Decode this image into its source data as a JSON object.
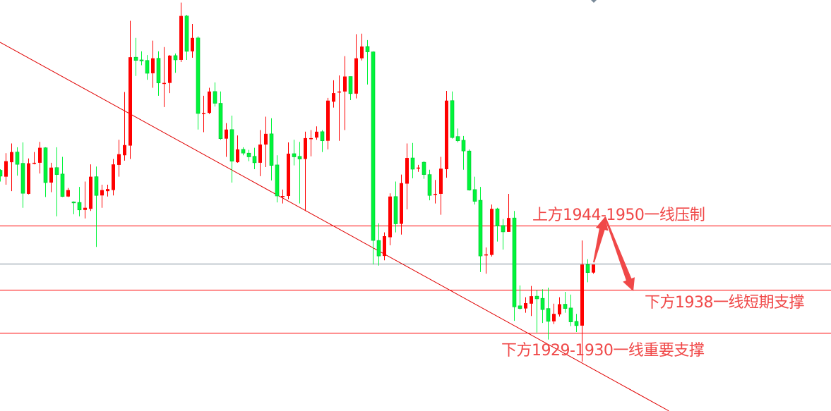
{
  "chart_data": {
    "type": "candlestick",
    "title": "",
    "xlabel": "",
    "ylabel": "",
    "ylim": [
      1915.4,
      1992.1
    ],
    "grid": false,
    "legend": "none",
    "colors": {
      "up": "#ff0000",
      "down": "#00f53a",
      "trendline": "#e00000",
      "level": "#ff0000",
      "current_price": "#7a8a99",
      "annotation": "#f04848"
    },
    "ohlc": [
      [
        1960.3,
        1960.5,
        1958.2,
        1959.2
      ],
      [
        1959.1,
        1963.5,
        1957.6,
        1962.0
      ],
      [
        1961.8,
        1965.3,
        1956.4,
        1963.7
      ],
      [
        1963.7,
        1964.6,
        1959.3,
        1961.4
      ],
      [
        1961.6,
        1965.5,
        1953.3,
        1956.0
      ],
      [
        1955.9,
        1962.5,
        1955.8,
        1961.6
      ],
      [
        1961.5,
        1963.7,
        1961.4,
        1961.7
      ],
      [
        1961.7,
        1965.6,
        1959.7,
        1964.5
      ],
      [
        1964.5,
        1964.6,
        1955.3,
        1958.0
      ],
      [
        1958.0,
        1961.7,
        1956.2,
        1960.8
      ],
      [
        1960.8,
        1964.6,
        1951.7,
        1959.5
      ],
      [
        1959.6,
        1962.8,
        1955.3,
        1955.4
      ],
      [
        1955.4,
        1957.0,
        1955.3,
        1956.6
      ],
      [
        1954.4,
        1954.5,
        1952.1,
        1954.3
      ],
      [
        1954.3,
        1957.2,
        1951.7,
        1952.9
      ],
      [
        1952.9,
        1958.2,
        1951.3,
        1953.3
      ],
      [
        1953.1,
        1961.4,
        1952.7,
        1959.1
      ],
      [
        1959.1,
        1961.0,
        1946.0,
        1955.6
      ],
      [
        1955.6,
        1957.6,
        1953.3,
        1956.6
      ],
      [
        1956.4,
        1957.6,
        1955.4,
        1956.8
      ],
      [
        1956.6,
        1962.4,
        1955.6,
        1961.4
      ],
      [
        1961.3,
        1966.0,
        1959.1,
        1963.3
      ],
      [
        1963.1,
        1974.9,
        1962.1,
        1965.0
      ],
      [
        1964.9,
        1988.2,
        1962.4,
        1981.4
      ],
      [
        1981.4,
        1985.0,
        1977.9,
        1980.8
      ],
      [
        1980.9,
        1982.5,
        1979.9,
        1980.8
      ],
      [
        1980.8,
        1981.8,
        1977.2,
        1978.4
      ],
      [
        1978.4,
        1984.5,
        1975.7,
        1981.2
      ],
      [
        1981.2,
        1982.5,
        1974.2,
        1976.6
      ],
      [
        1976.5,
        1983.3,
        1972.1,
        1976.6
      ],
      [
        1976.6,
        1981.8,
        1974.7,
        1981.7
      ],
      [
        1981.7,
        1982.1,
        1978.5,
        1980.9
      ],
      [
        1980.9,
        1991.6,
        1980.5,
        1989.1
      ],
      [
        1989.1,
        1989.3,
        1980.9,
        1982.5
      ],
      [
        1982.5,
        1987.6,
        1981.3,
        1985.0
      ],
      [
        1985.0,
        1985.3,
        1967.9,
        1970.9
      ],
      [
        1970.9,
        1974.2,
        1967.4,
        1971.0
      ],
      [
        1971.0,
        1975.7,
        1970.8,
        1975.0
      ],
      [
        1975.0,
        1976.7,
        1972.2,
        1972.8
      ],
      [
        1972.8,
        1975.0,
        1966.0,
        1966.2
      ],
      [
        1966.2,
        1969.1,
        1962.8,
        1967.9
      ],
      [
        1967.9,
        1970.5,
        1958.0,
        1962.0
      ],
      [
        1961.8,
        1966.8,
        1961.7,
        1964.2
      ],
      [
        1964.2,
        1964.6,
        1963.1,
        1963.5
      ],
      [
        1963.5,
        1964.1,
        1962.0,
        1962.8
      ],
      [
        1962.9,
        1964.5,
        1960.5,
        1961.7
      ],
      [
        1961.7,
        1967.8,
        1959.2,
        1965.1
      ],
      [
        1965.1,
        1970.3,
        1960.9,
        1967.1
      ],
      [
        1967.1,
        1970.0,
        1958.4,
        1961.2
      ],
      [
        1961.3,
        1963.1,
        1954.3,
        1955.5
      ],
      [
        1955.4,
        1956.7,
        1954.1,
        1955.5
      ],
      [
        1955.5,
        1965.5,
        1954.9,
        1963.4
      ],
      [
        1963.4,
        1966.0,
        1961.2,
        1962.8
      ],
      [
        1962.9,
        1965.6,
        1954.1,
        1962.4
      ],
      [
        1962.4,
        1967.5,
        1952.7,
        1966.3
      ],
      [
        1966.2,
        1967.8,
        1962.9,
        1966.3
      ],
      [
        1966.4,
        1968.5,
        1966.0,
        1967.5
      ],
      [
        1967.5,
        1967.8,
        1963.7,
        1965.8
      ],
      [
        1965.8,
        1973.8,
        1964.2,
        1973.3
      ],
      [
        1973.1,
        1977.1,
        1972.0,
        1974.7
      ],
      [
        1974.9,
        1978.0,
        1965.8,
        1975.0
      ],
      [
        1975.0,
        1981.6,
        1967.8,
        1977.8
      ],
      [
        1977.8,
        1977.8,
        1973.4,
        1974.6
      ],
      [
        1974.6,
        1985.7,
        1973.7,
        1981.2
      ],
      [
        1981.2,
        1985.8,
        1980.8,
        1983.4
      ],
      [
        1983.4,
        1984.6,
        1976.3,
        1982.4
      ],
      [
        1982.4,
        1982.5,
        1942.7,
        1947.2
      ],
      [
        1947.2,
        1950.4,
        1942.5,
        1944.3
      ],
      [
        1944.3,
        1948.7,
        1943.5,
        1948.0
      ],
      [
        1947.8,
        1956.0,
        1946.3,
        1955.4
      ],
      [
        1955.4,
        1958.2,
        1948.7,
        1950.3
      ],
      [
        1950.3,
        1959.5,
        1948.3,
        1957.9
      ],
      [
        1957.8,
        1965.3,
        1953.0,
        1962.6
      ],
      [
        1962.6,
        1965.4,
        1958.8,
        1960.5
      ],
      [
        1960.7,
        1961.3,
        1960.0,
        1960.8
      ],
      [
        1961.8,
        1962.0,
        1958.7,
        1959.5
      ],
      [
        1959.5,
        1960.4,
        1954.7,
        1955.6
      ],
      [
        1955.8,
        1958.5,
        1954.1,
        1955.9
      ],
      [
        1955.9,
        1962.8,
        1952.0,
        1960.6
      ],
      [
        1960.5,
        1975.1,
        1958.9,
        1973.3
      ],
      [
        1973.3,
        1975.0,
        1966.2,
        1966.4
      ],
      [
        1966.6,
        1968.1,
        1965.5,
        1965.8
      ],
      [
        1965.9,
        1966.7,
        1960.4,
        1963.9
      ],
      [
        1963.9,
        1964.2,
        1956.5,
        1956.6
      ],
      [
        1956.7,
        1959.1,
        1953.9,
        1954.5
      ],
      [
        1954.7,
        1957.2,
        1941.3,
        1944.3
      ],
      [
        1944.4,
        1945.9,
        1941.0,
        1944.6
      ],
      [
        1944.5,
        1953.9,
        1944.2,
        1953.1
      ],
      [
        1953.1,
        1953.3,
        1947.0,
        1949.9
      ],
      [
        1950.0,
        1951.2,
        1945.5,
        1948.8
      ],
      [
        1948.8,
        1955.9,
        1948.8,
        1951.4
      ],
      [
        1951.4,
        1952.7,
        1932.2,
        1934.8
      ],
      [
        1935.0,
        1938.8,
        1934.3,
        1934.5
      ],
      [
        1934.5,
        1936.6,
        1933.7,
        1935.5
      ],
      [
        1935.4,
        1938.7,
        1933.1,
        1936.8
      ],
      [
        1936.8,
        1937.9,
        1930.0,
        1936.3
      ],
      [
        1936.4,
        1938.1,
        1931.8,
        1934.3
      ],
      [
        1934.5,
        1938.4,
        1928.7,
        1932.1
      ],
      [
        1932.1,
        1935.4,
        1931.6,
        1933.5
      ],
      [
        1933.4,
        1936.6,
        1933.0,
        1935.3
      ],
      [
        1935.3,
        1937.6,
        1933.7,
        1934.5
      ],
      [
        1934.6,
        1937.1,
        1931.2,
        1932.0
      ],
      [
        1932.1,
        1933.5,
        1930.1,
        1931.3
      ],
      [
        1931.3,
        1947.2,
        1924.6,
        1942.7
      ],
      [
        1942.7,
        1943.7,
        1939.4,
        1941.2
      ],
      [
        1941.2,
        1942.5,
        1941.0,
        1942.7
      ]
    ],
    "horizontal_levels": [
      {
        "price": 1950,
        "kind": "resistance"
      },
      {
        "price": 1942.9,
        "kind": "current_price"
      },
      {
        "price": 1938,
        "kind": "support"
      },
      {
        "price": 1930,
        "kind": "support"
      }
    ],
    "trendline": {
      "from": {
        "bar": 0,
        "price": 1984.2
      },
      "to": {
        "bar": 118.4,
        "price": 1915.4
      }
    },
    "annotations": {
      "resistance": "上方1944-1950一线压制",
      "short_support": "下方1938一线短期支撑",
      "major_support": "下方1929-1930一线重要支撑"
    },
    "forecast_path": [
      {
        "bar": 105,
        "price": 1943.1
      },
      {
        "bar": 107,
        "price": 1951.6
      },
      {
        "bar": 112,
        "price": 1937.7
      }
    ]
  }
}
